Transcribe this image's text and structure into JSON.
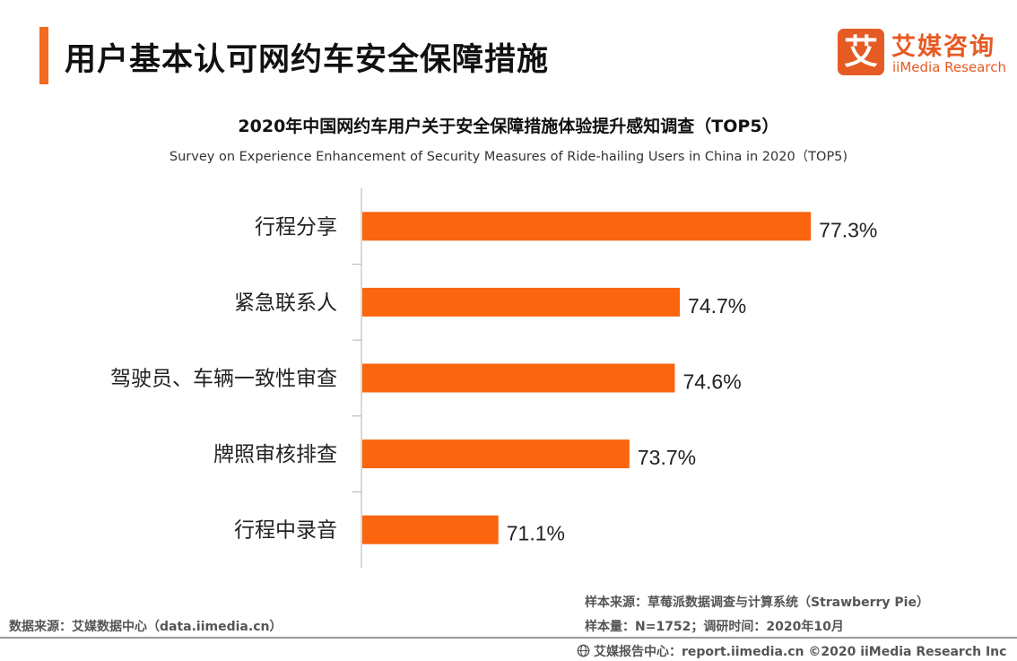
{
  "header": {
    "title": "用户基本认可网约车安全保障措施",
    "logo_mark": "艾",
    "logo_cn": "艾媒咨询",
    "logo_en": "iiMedia Research"
  },
  "colors": {
    "accent": "#f26b21",
    "bar": "#fb650f",
    "logo": "#e65a23"
  },
  "chart_data": {
    "type": "bar",
    "orientation": "horizontal",
    "title": "2020年中国网约车用户关于安全保障措施体验提升感知调查（TOP5）",
    "subtitle": "Survey on Experience Enhancement of Security Measures of Ride-hailing Users in China in 2020（TOP5)",
    "categories": [
      "行程分享",
      "紧急联系人",
      "驾驶员、车辆一致性审查",
      "牌照审核排查",
      "行程中录音"
    ],
    "values": [
      77.3,
      74.7,
      74.6,
      73.7,
      71.1
    ],
    "value_labels": [
      "77.3%",
      "74.7%",
      "74.6%",
      "73.7%",
      "71.1%"
    ],
    "value_unit": "%",
    "xlabel": "",
    "ylabel": "",
    "grid": false,
    "legend": "none"
  },
  "footer": {
    "data_source": "数据来源：艾媒数据中心（data.iimedia.cn）",
    "sample_source": "样本来源：草莓派数据调查与计算系统（Strawberry Pie）",
    "sample_size": "样本量：N=1752；调研时间：2020年10月",
    "copyright": "艾媒报告中心：report.iimedia.cn ©2020  iiMedia Research  Inc"
  }
}
